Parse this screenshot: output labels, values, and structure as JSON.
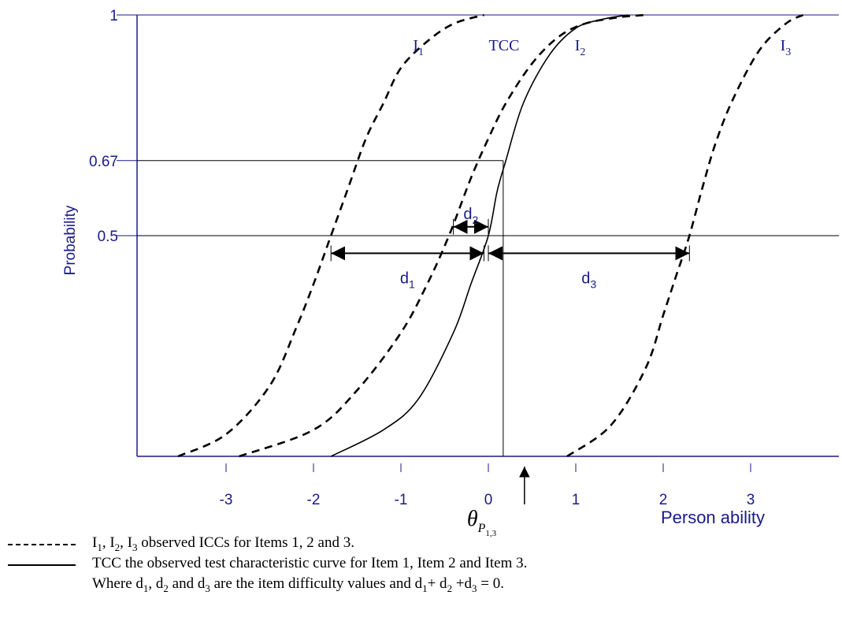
{
  "chart_data": {
    "type": "line",
    "title": "",
    "xlabel": "Person ability",
    "ylabel": "Probability",
    "xlim": [
      -4,
      4
    ],
    "ylim": [
      0,
      1
    ],
    "xticks": [
      "-3",
      "-2",
      "-1",
      "0",
      "1",
      "2",
      "3"
    ],
    "xtick_values": [
      -3,
      -2,
      -1,
      0,
      1,
      2,
      3
    ],
    "yticks": [
      "0.5",
      "0.67",
      "1"
    ],
    "ytick_values": [
      0.5,
      0.67,
      1
    ],
    "series": [
      {
        "name": "I1",
        "style": "dashed",
        "x": [
          -3.55,
          -3.0,
          -2.5,
          -2.2,
          -2.0,
          -1.8,
          -1.6,
          -1.4,
          -1.2,
          -1.0,
          -0.7,
          -0.4,
          -0.05
        ],
        "y": [
          0.0,
          0.05,
          0.16,
          0.29,
          0.39,
          0.5,
          0.61,
          0.72,
          0.8,
          0.88,
          0.94,
          0.98,
          1.0
        ]
      },
      {
        "name": "TCC",
        "style": "dashed",
        "x": [
          -2.85,
          -2.0,
          -1.5,
          -1.0,
          -0.7,
          -0.45,
          -0.2,
          0.0,
          0.2,
          0.5,
          0.8,
          1.1,
          1.5,
          1.8
        ],
        "y": [
          0.0,
          0.06,
          0.15,
          0.28,
          0.39,
          0.5,
          0.63,
          0.72,
          0.8,
          0.89,
          0.95,
          0.98,
          0.995,
          1.0
        ]
      },
      {
        "name": "I2",
        "style": "solid",
        "x": [
          -1.8,
          -1.2,
          -0.8,
          -0.4,
          -0.2,
          0.0,
          0.1,
          0.2,
          0.4,
          0.7,
          1.0,
          1.3,
          1.6
        ],
        "y": [
          0.0,
          0.06,
          0.13,
          0.28,
          0.39,
          0.5,
          0.6,
          0.67,
          0.8,
          0.91,
          0.97,
          0.99,
          1.0
        ]
      },
      {
        "name": "I3",
        "style": "dashed",
        "x": [
          0.9,
          1.4,
          1.8,
          2.0,
          2.15,
          2.3,
          2.45,
          2.6,
          2.8,
          3.1,
          3.4,
          3.6
        ],
        "y": [
          0.0,
          0.07,
          0.2,
          0.32,
          0.41,
          0.5,
          0.61,
          0.71,
          0.81,
          0.92,
          0.98,
          1.0
        ]
      }
    ],
    "curve_labels": [
      {
        "text": "I",
        "sub": "1",
        "x": -0.8,
        "y": 0.92
      },
      {
        "text": "TCC",
        "sub": "",
        "x": 0.18,
        "y": 0.92
      },
      {
        "text": "I",
        "sub": "2",
        "x": 1.05,
        "y": 0.92
      },
      {
        "text": "I",
        "sub": "3",
        "x": 3.4,
        "y": 0.92
      }
    ],
    "reference_lines": {
      "p67": 0.67,
      "p50": 0.5,
      "theta_x": 0.17
    },
    "difficulty_arrows": [
      {
        "label": "d",
        "sub": "1",
        "x1": -1.8,
        "x2": -0.05,
        "y": 0.46
      },
      {
        "label": "d",
        "sub": "2",
        "x1": -0.4,
        "x2": 0.0,
        "y": 0.52
      },
      {
        "label": "d",
        "sub": "3",
        "x1": 0.0,
        "x2": 2.3,
        "y": 0.46
      }
    ],
    "theta_label": {
      "symbol": "θ",
      "sub": "P",
      "subsub": "1,3"
    },
    "legend_position": "bottom-left"
  },
  "legend": {
    "line1": {
      "i_items": [
        {
          "text": "I",
          "sub": "1"
        },
        {
          "text": "I",
          "sub": "2"
        },
        {
          "text": "I",
          "sub": "3"
        }
      ],
      "rest": " observed ICCs for Items 1, 2 and 3."
    },
    "line2": "TCC the observed test characteristic curve for Item 1, Item 2 and Item 3.",
    "line3": {
      "p1": "Where d",
      "s1": "1",
      "p2": ", d",
      "s2": "2",
      "p3": " and d",
      "s3": "3",
      "p4": " are the item difficulty values and d",
      "s4": "1",
      "p5": "+ d",
      "s5": "2",
      "p6": " +d",
      "s6": "3",
      "p7": " = 0."
    }
  },
  "colors": {
    "axis": "#1a1a8c",
    "ink": "#000000"
  }
}
